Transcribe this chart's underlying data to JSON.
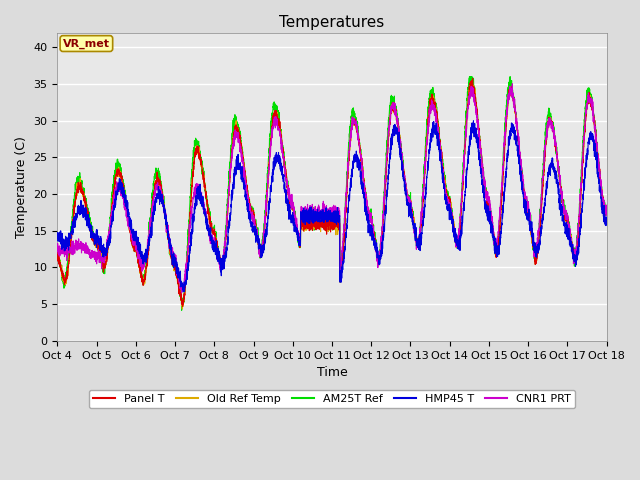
{
  "title": "Temperatures",
  "xlabel": "Time",
  "ylabel": "Temperature (C)",
  "ylim": [
    0,
    42
  ],
  "background_color": "#dcdcdc",
  "plot_bg_color": "#e8e8e8",
  "series_colors": {
    "Panel T": "#dd0000",
    "Old Ref Temp": "#ddaa00",
    "AM25T Ref": "#00dd00",
    "HMP45 T": "#0000dd",
    "CNR1 PRT": "#cc00cc"
  },
  "x_tick_labels": [
    "Oct 4",
    "Oct 5",
    "Oct 6",
    "Oct 7",
    "Oct 8",
    "Oct 9",
    "Oct 10",
    "Oct 11",
    "Oct 12",
    "Oct 13",
    "Oct 14",
    "Oct 15",
    "Oct 16",
    "Oct 17",
    "Oct 18"
  ],
  "yticks": [
    0,
    5,
    10,
    15,
    20,
    25,
    30,
    35,
    40
  ],
  "title_fontsize": 11,
  "axis_label_fontsize": 9,
  "tick_fontsize": 8,
  "annotation_text": "VR_met",
  "day_peaks": [
    21,
    23,
    22,
    26,
    29,
    31,
    17,
    30,
    32,
    33,
    35,
    34,
    30,
    33
  ],
  "day_troughs": [
    8,
    10,
    8,
    5,
    10,
    12,
    13,
    8,
    11,
    13,
    13,
    12,
    11,
    11
  ],
  "hmp_peaks": [
    18,
    21,
    20,
    20,
    24,
    25,
    19,
    25,
    29,
    29,
    29,
    29,
    24,
    28
  ],
  "hmp_troughs": [
    13,
    12,
    11,
    7,
    10,
    12,
    13,
    9,
    11,
    13,
    13,
    12,
    12,
    11
  ],
  "cnr1_peaks": [
    13,
    21,
    21,
    21,
    28,
    30,
    19,
    30,
    32,
    32,
    34,
    34,
    30,
    33
  ],
  "cnr1_troughs": [
    12,
    11,
    10,
    7,
    10,
    12,
    14,
    9,
    11,
    13,
    13,
    13,
    12,
    11
  ]
}
